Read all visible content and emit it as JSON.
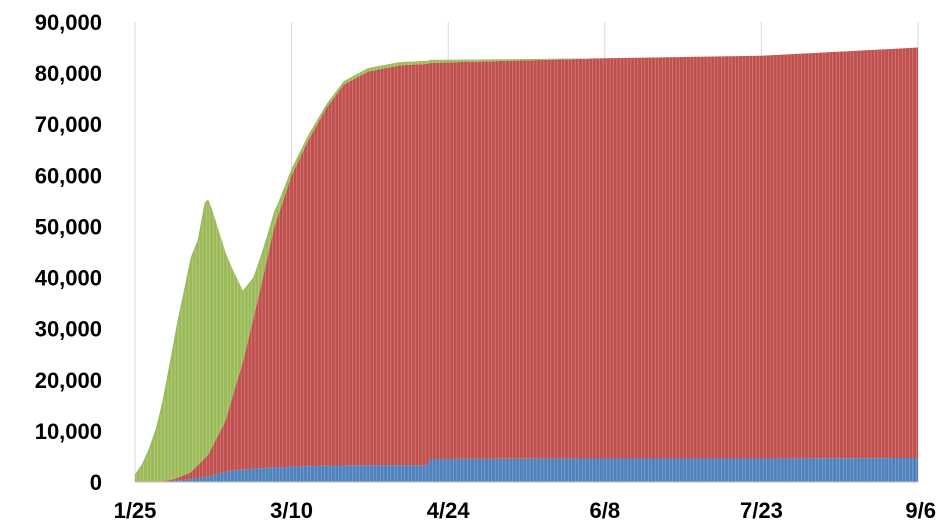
{
  "chart_data": {
    "type": "area",
    "stacked": true,
    "title": "",
    "xlabel": "",
    "ylabel": "",
    "x_tick_labels": [
      "1/25",
      "3/10",
      "4/24",
      "6/8",
      "7/23",
      "9/6"
    ],
    "y_tick_labels": [
      "0",
      "10,000",
      "20,000",
      "30,000",
      "40,000",
      "50,000",
      "60,000",
      "70,000",
      "80,000",
      "90,000"
    ],
    "ylim": [
      0,
      90000
    ],
    "grid": "vertical",
    "series": [
      {
        "color": "#4f81bd",
        "points": [
          [
            "1/25",
            0
          ],
          [
            "2/1",
            0
          ],
          [
            "2/8",
            400
          ],
          [
            "2/15",
            1100
          ],
          [
            "2/22",
            2300
          ],
          [
            "3/1",
            2700
          ],
          [
            "3/10",
            3000
          ],
          [
            "3/20",
            3200
          ],
          [
            "4/1",
            3300
          ],
          [
            "4/18",
            3300
          ],
          [
            "4/19",
            4500
          ],
          [
            "6/8",
            4600
          ],
          [
            "7/23",
            4600
          ],
          [
            "9/6",
            4700
          ]
        ]
      },
      {
        "color": "#c0504d",
        "points": [
          [
            "1/25",
            0
          ],
          [
            "2/1",
            0
          ],
          [
            "2/5",
            300
          ],
          [
            "2/10",
            1300
          ],
          [
            "2/15",
            4200
          ],
          [
            "2/20",
            10000
          ],
          [
            "2/25",
            21000
          ],
          [
            "3/1",
            35000
          ],
          [
            "3/5",
            47000
          ],
          [
            "3/10",
            57000
          ],
          [
            "3/15",
            64000
          ],
          [
            "3/20",
            70000
          ],
          [
            "3/25",
            74500
          ],
          [
            "4/1",
            77000
          ],
          [
            "4/10",
            78200
          ],
          [
            "4/18",
            78500
          ],
          [
            "4/19",
            77500
          ],
          [
            "6/8",
            78300
          ],
          [
            "7/23",
            78800
          ],
          [
            "9/6",
            80300
          ]
        ]
      },
      {
        "color": "#9bbb59",
        "points": [
          [
            "1/25",
            1500
          ],
          [
            "1/27",
            3500
          ],
          [
            "1/29",
            6500
          ],
          [
            "1/31",
            10500
          ],
          [
            "2/2",
            16000
          ],
          [
            "2/4",
            23000
          ],
          [
            "2/6",
            30000
          ],
          [
            "2/8",
            36000
          ],
          [
            "2/10",
            42000
          ],
          [
            "2/12",
            44000
          ],
          [
            "2/13",
            47000
          ],
          [
            "2/14",
            50000
          ],
          [
            "2/15",
            50000
          ],
          [
            "2/16",
            47000
          ],
          [
            "2/18",
            40000
          ],
          [
            "2/20",
            33000
          ],
          [
            "2/22",
            25000
          ],
          [
            "2/25",
            14000
          ],
          [
            "2/28",
            8000
          ],
          [
            "3/3",
            4500
          ],
          [
            "3/6",
            2500
          ],
          [
            "3/10",
            1300
          ],
          [
            "3/14",
            1100
          ],
          [
            "3/20",
            700
          ],
          [
            "4/1",
            700
          ],
          [
            "4/18",
            600
          ],
          [
            "6/8",
            0
          ],
          [
            "7/23",
            0
          ],
          [
            "9/6",
            0
          ]
        ]
      }
    ]
  }
}
